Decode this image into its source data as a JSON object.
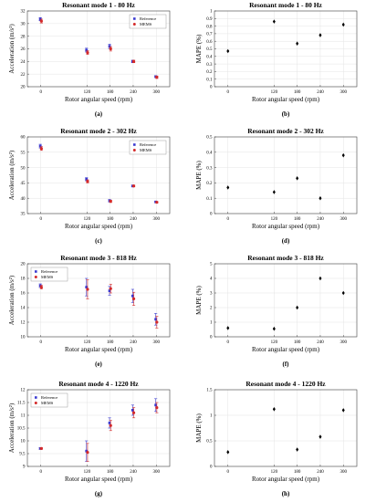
{
  "chart_data": [
    {
      "id": "a",
      "panel_label": "(a)",
      "type": "scatter",
      "title": "Resonant mode 1 - 80 Hz",
      "xlabel": "Rotor angular speed (rpm)",
      "ylabel": "Acceleration (m/s²)",
      "x": [
        0,
        120,
        180,
        240,
        300
      ],
      "xticks": [
        "0",
        "120",
        "180",
        "240",
        "300"
      ],
      "ylim": [
        20,
        32
      ],
      "yticks": [
        20,
        22,
        24,
        26,
        28,
        30,
        32
      ],
      "legend": {
        "position": "top-right",
        "entries": [
          "Reference",
          "MEMS"
        ]
      },
      "series": [
        {
          "name": "Reference",
          "color": "#3a3ad0",
          "marker": "square",
          "values": [
            30.7,
            25.8,
            26.4,
            24.0,
            21.6
          ],
          "errors": [
            0.25,
            0.3,
            0.35,
            0.2,
            0.15
          ]
        },
        {
          "name": "MEMS",
          "color": "#d42a2a",
          "marker": "circle",
          "values": [
            30.4,
            25.4,
            26.0,
            24.0,
            21.5
          ],
          "errors": [
            0.3,
            0.3,
            0.35,
            0.2,
            0.2
          ]
        }
      ]
    },
    {
      "id": "b",
      "panel_label": "(b)",
      "type": "scatter",
      "title": "Resonant mode 1 - 80 Hz",
      "xlabel": "Rotor angular speed (rpm)",
      "ylabel": "MAPE (%)",
      "x": [
        0,
        120,
        180,
        240,
        300
      ],
      "xticks": [
        "0",
        "120",
        "180",
        "240",
        "300"
      ],
      "ylim": [
        0,
        1
      ],
      "yticks": [
        0,
        0.1,
        0.2,
        0.3,
        0.4,
        0.5,
        0.6,
        0.7,
        0.8,
        0.9,
        1
      ],
      "series": [
        {
          "color": "#000000",
          "marker": "diamond",
          "values": [
            0.47,
            0.86,
            0.57,
            0.68,
            0.82
          ]
        }
      ]
    },
    {
      "id": "c",
      "panel_label": "(c)",
      "type": "scatter",
      "title": "Resonant mode 2 - 302 Hz",
      "xlabel": "Rotor angular speed (rpm)",
      "ylabel": "Acceleration (m/s²)",
      "x": [
        0,
        120,
        180,
        240,
        300
      ],
      "xticks": [
        "0",
        "120",
        "180",
        "240",
        "300"
      ],
      "ylim": [
        35,
        60
      ],
      "yticks": [
        35,
        40,
        45,
        50,
        55,
        60
      ],
      "legend": {
        "position": "top-right",
        "entries": [
          "Reference",
          "MEMS"
        ]
      },
      "series": [
        {
          "name": "Reference",
          "color": "#3a3ad0",
          "marker": "square",
          "values": [
            57.0,
            46.2,
            39.2,
            44.0,
            38.8
          ],
          "errors": [
            0.6,
            0.5,
            0.4,
            0.3,
            0.2
          ]
        },
        {
          "name": "MEMS",
          "color": "#d42a2a",
          "marker": "circle",
          "values": [
            56.2,
            45.5,
            39.0,
            44.0,
            38.7
          ],
          "errors": [
            0.6,
            0.5,
            0.4,
            0.3,
            0.2
          ]
        }
      ]
    },
    {
      "id": "d",
      "panel_label": "(d)",
      "type": "scatter",
      "title": "Resonant mode 2 - 302 Hz",
      "xlabel": "Rotor angular speed (rpm)",
      "ylabel": "MAPE (%)",
      "x": [
        0,
        120,
        180,
        240,
        300
      ],
      "xticks": [
        "0",
        "120",
        "180",
        "240",
        "300"
      ],
      "ylim": [
        0,
        0.5
      ],
      "yticks": [
        0,
        0.1,
        0.2,
        0.3,
        0.4,
        0.5
      ],
      "series": [
        {
          "color": "#000000",
          "marker": "diamond",
          "values": [
            0.17,
            0.14,
            0.23,
            0.1,
            0.38
          ]
        }
      ]
    },
    {
      "id": "e",
      "panel_label": "(e)",
      "type": "scatter",
      "title": "Resonant mode 3 - 818 Hz",
      "xlabel": "Rotor angular speed (rpm)",
      "ylabel": "Acceleration (m/s²)",
      "x": [
        0,
        120,
        180,
        240,
        300
      ],
      "xticks": [
        "0",
        "120",
        "180",
        "240",
        "300"
      ],
      "ylim": [
        10,
        20
      ],
      "yticks": [
        10,
        12,
        14,
        16,
        18,
        20
      ],
      "legend": {
        "position": "top-left",
        "entries": [
          "Reference",
          "MEMS"
        ]
      },
      "series": [
        {
          "name": "Reference",
          "color": "#3a3ad0",
          "marker": "square",
          "values": [
            17.0,
            16.8,
            16.3,
            15.6,
            12.4
          ],
          "errors": [
            0.25,
            1.2,
            0.6,
            0.9,
            0.8
          ]
        },
        {
          "name": "MEMS",
          "color": "#d42a2a",
          "marker": "circle",
          "values": [
            16.8,
            16.5,
            16.6,
            15.2,
            12.0
          ],
          "errors": [
            0.25,
            1.3,
            0.6,
            0.9,
            0.8
          ]
        }
      ]
    },
    {
      "id": "f",
      "panel_label": "(f)",
      "type": "scatter",
      "title": "Resonant mode 3 - 818 Hz",
      "xlabel": "Rotor angular speed (rpm)",
      "ylabel": "MAPE (%)",
      "x": [
        0,
        120,
        180,
        240,
        300
      ],
      "xticks": [
        "0",
        "120",
        "180",
        "240",
        "300"
      ],
      "ylim": [
        0,
        5
      ],
      "yticks": [
        0,
        1,
        2,
        3,
        4,
        5
      ],
      "series": [
        {
          "color": "#000000",
          "marker": "diamond",
          "values": [
            0.6,
            0.55,
            2.0,
            4.0,
            3.0
          ]
        }
      ]
    },
    {
      "id": "g",
      "panel_label": "(g)",
      "type": "scatter",
      "title": "Resonant mode 4 - 1220 Hz",
      "xlabel": "Rotor angular speed (rpm)",
      "ylabel": "Acceleration (m/s²)",
      "x": [
        0,
        120,
        180,
        240,
        300
      ],
      "xticks": [
        "0",
        "120",
        "180",
        "240",
        "300"
      ],
      "ylim": [
        9,
        12
      ],
      "yticks": [
        9,
        9.5,
        10,
        10.5,
        11,
        11.5,
        12
      ],
      "legend": {
        "position": "top-left",
        "entries": [
          "Reference",
          "MEMS"
        ]
      },
      "series": [
        {
          "name": "Reference",
          "color": "#3a3ad0",
          "marker": "square",
          "values": [
            9.7,
            9.6,
            10.7,
            11.2,
            11.4
          ],
          "errors": [
            0.03,
            0.4,
            0.2,
            0.2,
            0.25
          ]
        },
        {
          "name": "MEMS",
          "color": "#d42a2a",
          "marker": "circle",
          "values": [
            9.7,
            9.55,
            10.6,
            11.1,
            11.3
          ],
          "errors": [
            0.03,
            0.35,
            0.2,
            0.2,
            0.2
          ]
        }
      ]
    },
    {
      "id": "h",
      "panel_label": "(h)",
      "type": "scatter",
      "title": "Resonant mode 4 - 1220 Hz",
      "xlabel": "Rotor angular speed (rpm)",
      "ylabel": "MAPE (%)",
      "x": [
        0,
        120,
        180,
        240,
        300
      ],
      "xticks": [
        "0",
        "120",
        "180",
        "240",
        "300"
      ],
      "ylim": [
        0,
        1.5
      ],
      "yticks": [
        0,
        0.5,
        1,
        1.5
      ],
      "series": [
        {
          "color": "#000000",
          "marker": "diamond",
          "values": [
            0.28,
            1.12,
            0.33,
            0.58,
            1.1
          ]
        }
      ]
    }
  ]
}
